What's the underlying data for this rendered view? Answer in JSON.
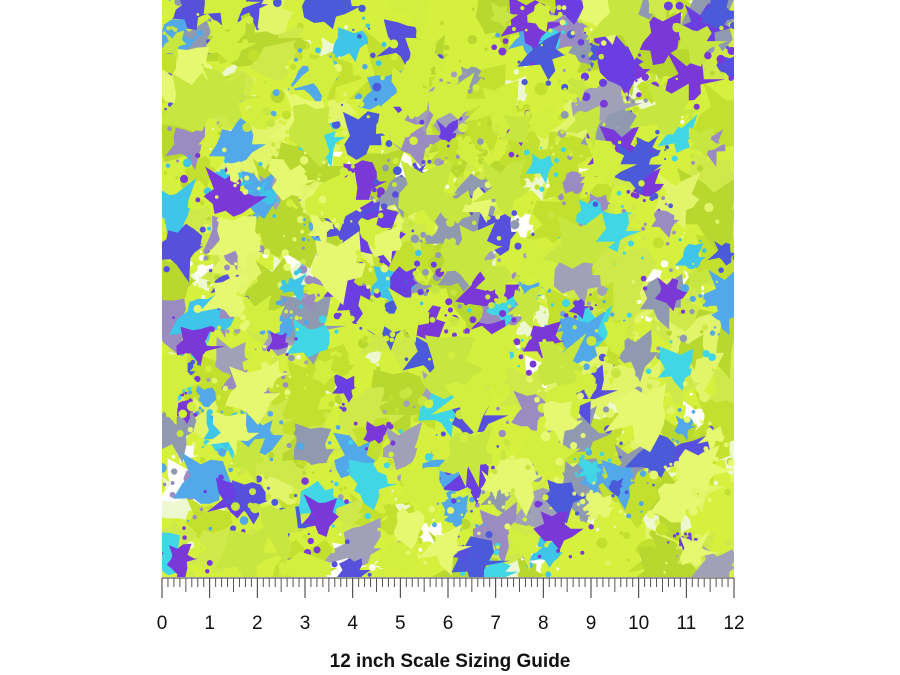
{
  "ruler": {
    "labels": [
      0,
      1,
      2,
      3,
      4,
      5,
      6,
      7,
      8,
      9,
      10,
      11,
      12
    ]
  },
  "caption": "12 inch Scale Sizing Guide"
}
